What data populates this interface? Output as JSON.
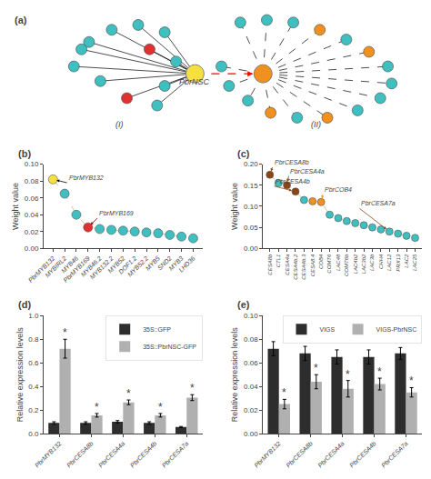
{
  "chart_data": [
    {
      "type": "scatter",
      "title": "(a)",
      "xlim": [
        0,
        10
      ],
      "ylim": [
        0,
        5
      ],
      "tick_labels": false,
      "grid": false,
      "series": [
        {
          "type": "line",
          "line_style": "solid",
          "color": "#000000",
          "x": [
            4.0,
            1.2,
            null,
            4.0,
            1.8,
            null,
            4.0,
            2.5,
            null,
            4.0,
            3.2,
            null,
            4.0,
            0.8,
            null,
            4.0,
            1.5,
            null,
            4.0,
            2.2,
            null,
            4.0,
            3.0,
            null,
            4.0,
            1.0,
            null,
            4.0,
            2.8,
            null,
            4.0,
            3.5,
            null,
            4.0,
            3.2
          ],
          "values": [
            2.5,
            3.8,
            null,
            2.5,
            4.3,
            null,
            2.5,
            4.5,
            null,
            2.5,
            4.2,
            null,
            2.5,
            2.8,
            null,
            2.5,
            2.2,
            null,
            2.5,
            1.5,
            null,
            2.5,
            1.2,
            null,
            2.5,
            3.5,
            null,
            2.5,
            3.5,
            null,
            2.5,
            3.0,
            null,
            2.5,
            2.0
          ]
        },
        {
          "type": "line",
          "line_style": "dashed",
          "color": "#000000",
          "x": [
            5.8,
            5.2,
            null,
            5.8,
            5.9,
            null,
            5.8,
            6.6,
            null,
            5.8,
            7.3,
            null,
            5.8,
            8.0,
            null,
            5.8,
            8.6,
            null,
            5.8,
            9.1,
            null,
            5.8,
            9.2,
            null,
            5.8,
            8.9,
            null,
            5.8,
            8.3,
            null,
            5.8,
            7.5,
            null,
            5.8,
            6.7,
            null,
            5.8,
            6.0,
            null,
            5.8,
            5.4,
            null,
            5.8,
            4.9,
            null,
            5.8,
            4.7
          ],
          "values": [
            2.5,
            4.6,
            null,
            2.5,
            4.7,
            null,
            2.5,
            4.6,
            null,
            2.5,
            4.3,
            null,
            2.5,
            3.9,
            null,
            2.5,
            3.4,
            null,
            2.5,
            2.8,
            null,
            2.5,
            2.1,
            null,
            2.5,
            1.5,
            null,
            2.5,
            1.0,
            null,
            2.5,
            0.7,
            null,
            2.5,
            0.7,
            null,
            2.5,
            0.9,
            null,
            2.5,
            1.4,
            null,
            2.5,
            2.0,
            null,
            2.5,
            2.8
          ]
        },
        {
          "type": "arrow",
          "line_style": "dashed",
          "color": "#ff0000",
          "x": [
            4.0,
            5.8
          ],
          "values": [
            2.5,
            2.5
          ]
        },
        {
          "marker": "circle",
          "color": "#3fbfbf",
          "x": [
            1.2,
            1.8,
            2.5,
            3.2,
            0.8,
            1.5,
            3.0,
            1.0,
            3.5,
            3.2,
            5.2,
            5.9,
            6.6,
            8.0,
            9.1,
            9.2,
            8.9,
            8.3,
            6.7,
            5.4,
            4.9,
            4.7
          ],
          "values": [
            3.8,
            4.3,
            4.5,
            4.2,
            2.8,
            2.2,
            1.2,
            3.5,
            3.0,
            2.0,
            4.6,
            4.7,
            4.6,
            3.9,
            2.8,
            2.1,
            1.5,
            1.0,
            0.7,
            1.4,
            2.0,
            2.8
          ]
        },
        {
          "marker": "circle",
          "color": "#e03030",
          "x": [
            2.2,
            2.8
          ],
          "values": [
            1.5,
            3.5
          ]
        },
        {
          "marker": "circle",
          "color": "#f09020",
          "x": [
            7.3,
            8.6,
            7.5,
            6.0
          ],
          "values": [
            4.3,
            3.4,
            0.7,
            0.9
          ]
        },
        {
          "marker": "large_circle",
          "color": "#f5e040",
          "x": [
            4.0
          ],
          "values": [
            2.5
          ]
        },
        {
          "marker": "large_circle",
          "color": "#f09020",
          "x": [
            5.8
          ],
          "values": [
            2.5
          ]
        }
      ],
      "annotations": [
        {
          "text": "PbrNSC",
          "x": 4.0,
          "y": 1.92
        },
        {
          "text": "(I)",
          "x": 2.0,
          "y": 0.15
        },
        {
          "text": "(II)",
          "x": 7.2,
          "y": 0.15
        }
      ]
    },
    {
      "type": "line",
      "title": "(b)",
      "ylabel": "Weight value",
      "categories": [
        "PbrMYB132",
        "MYBIRL2",
        "MYB46",
        "PbrMYB169",
        "MYB46.2",
        "MYB132.2",
        "MYB52",
        "DOF1.2",
        "MYB52.2",
        "MYB5",
        "SND2",
        "MYB3",
        "LHD36"
      ],
      "values": [
        0.082,
        0.065,
        0.04,
        0.025,
        0.023,
        0.022,
        0.021,
        0.02,
        0.019,
        0.018,
        0.016,
        0.014,
        0.012
      ],
      "color": "#c8c8a0",
      "line_style": "dashed",
      "marker": "circle",
      "colors": [
        "#f5e040",
        "#3fbfbf",
        "#3fbfbf",
        "#e03030",
        "#3fbfbf",
        "#3fbfbf",
        "#3fbfbf",
        "#3fbfbf",
        "#3fbfbf",
        "#3fbfbf",
        "#3fbfbf",
        "#3fbfbf",
        "#3fbfbf"
      ],
      "ylim": [
        0.0,
        0.1
      ],
      "yticks": [
        {
          "value": 0.0,
          "label": "0.00"
        },
        0.02,
        0.04,
        0.06,
        0.08,
        {
          "value": 0.1,
          "label": "0.10"
        }
      ],
      "grid": false,
      "annotations": [
        {
          "text": "PbrMYB132",
          "x": 1.2,
          "y": 0.078,
          "point": 0,
          "color": "#000000"
        },
        {
          "text": "PbrMYB169",
          "x": 3.8,
          "y": 0.036,
          "point": 3,
          "color": "#8b0000"
        }
      ]
    },
    {
      "type": "line",
      "title": "(c)",
      "ylabel": "Weight value",
      "categories": [
        "CESA8b",
        "CTL1",
        "CESA4a",
        "CESA4b.2",
        "CESA4b.3",
        "CESA8.4",
        "COB4",
        "COMT6",
        "LAC48",
        "COMT6b",
        "LAC4b2",
        "LAC3b2",
        "LAC3b",
        "CHH4",
        "LAC12",
        "PRX13",
        "LAC2",
        "LAC25"
      ],
      "values": [
        0.175,
        0.155,
        0.15,
        0.135,
        0.115,
        0.112,
        0.11,
        0.08,
        0.072,
        0.065,
        0.06,
        0.055,
        0.05,
        0.045,
        0.04,
        0.035,
        0.03,
        0.025
      ],
      "color": "#c8c8a0",
      "line_style": "dashed",
      "marker": "circle",
      "colors": [
        "#8B4513",
        "#3fbfbf",
        "#8B4513",
        "#8B4513",
        "#3fbfbf",
        "#f09020",
        "#f09020",
        "#3fbfbf",
        "#3fbfbf",
        "#3fbfbf",
        "#3fbfbf",
        "#3fbfbf",
        "#3fbfbf",
        "#3fbfbf",
        "#3fbfbf",
        "#3fbfbf",
        "#3fbfbf",
        "#3fbfbf"
      ],
      "ylim": [
        0.0,
        0.2
      ],
      "yticks": [
        {
          "value": 0.0,
          "label": "0.00"
        },
        0.05,
        {
          "value": 0.1,
          "label": "0.10"
        },
        0.15,
        {
          "value": 0.2,
          "label": "0.20"
        }
      ],
      "grid": false,
      "annotations": [
        {
          "text": "PbrCESA8b",
          "x": 0.3,
          "y": 0.193,
          "point": 0,
          "color": "#8B4513"
        },
        {
          "text": "PbrCESA4a",
          "x": 2.2,
          "y": 0.172,
          "point": 2,
          "color": "#8B4513"
        },
        {
          "text": "PbrCOB4",
          "x": 6.2,
          "y": 0.128,
          "point": 6,
          "color": "#f09020"
        },
        {
          "text": "PbrCESA4b",
          "x": 0.5,
          "y": 0.148,
          "point": 3,
          "color": "#8B4513"
        },
        {
          "text": "PbrCESA7a",
          "x": 10.5,
          "y": 0.095,
          "point": 14,
          "color": "#8B4513"
        }
      ]
    },
    {
      "type": "bar",
      "title": "(d)",
      "ylabel": "Relative expression levels",
      "categories": [
        "PbrMYB132",
        "PbrCESA8b",
        "PbrCESA4a",
        "PbrCESA4b",
        "PbrCESA7a"
      ],
      "series": [
        {
          "name": "35S::GFP",
          "color": "#2d2d2d",
          "values": [
            0.09,
            0.09,
            0.1,
            0.09,
            0.055
          ],
          "errors": [
            0.01,
            0.01,
            0.01,
            0.01,
            0.005
          ]
        },
        {
          "name": "35S::PbrNSC-GFP",
          "color": "#b0b0b0",
          "values": [
            0.72,
            0.155,
            0.265,
            0.155,
            0.305
          ],
          "errors": [
            0.08,
            0.015,
            0.02,
            0.015,
            0.025
          ]
        }
      ],
      "ylim": [
        0.0,
        1.0
      ],
      "yticks": [
        {
          "value": 0.0,
          "label": "0.0"
        },
        0.2,
        0.4,
        0.6,
        0.8,
        {
          "value": 1.0,
          "label": "1.0"
        }
      ],
      "grid": false,
      "legend": "upper right",
      "annotations": [
        {
          "text": "*",
          "x": 0,
          "series": 1
        },
        {
          "text": "*",
          "x": 1,
          "series": 1
        },
        {
          "text": "*",
          "x": 2,
          "series": 1
        },
        {
          "text": "*",
          "x": 3,
          "series": 1
        },
        {
          "text": "*",
          "x": 4,
          "series": 1
        }
      ]
    },
    {
      "type": "bar",
      "title": "(e)",
      "ylabel": "Relative expression levels",
      "categories": [
        "PbrMYB132",
        "PbrCESA8b",
        "PbrCESA4a",
        "PbrCESA4b",
        "PbrCESA7a"
      ],
      "series": [
        {
          "name": "VIGS",
          "color": "#2d2d2d",
          "values": [
            0.072,
            0.068,
            0.065,
            0.065,
            0.068
          ],
          "errors": [
            0.006,
            0.006,
            0.006,
            0.006,
            0.005
          ]
        },
        {
          "name": "VIGS-PbrNSC",
          "color": "#b0b0b0",
          "values": [
            0.025,
            0.044,
            0.038,
            0.042,
            0.035
          ],
          "errors": [
            0.004,
            0.006,
            0.007,
            0.005,
            0.004
          ]
        }
      ],
      "ylim": [
        0.0,
        0.1
      ],
      "yticks": [
        {
          "value": 0.0,
          "label": "0.00"
        },
        0.02,
        0.04,
        0.06,
        0.08,
        {
          "value": 0.1,
          "label": "0.10"
        }
      ],
      "grid": false,
      "legend": "upper right",
      "annotations": [
        {
          "text": "*",
          "x": 0,
          "series": 1
        },
        {
          "text": "*",
          "x": 1,
          "series": 1
        },
        {
          "text": "*",
          "x": 2,
          "series": 1
        },
        {
          "text": "*",
          "x": 3,
          "series": 1
        },
        {
          "text": "*",
          "x": 4,
          "series": 1
        }
      ]
    }
  ]
}
